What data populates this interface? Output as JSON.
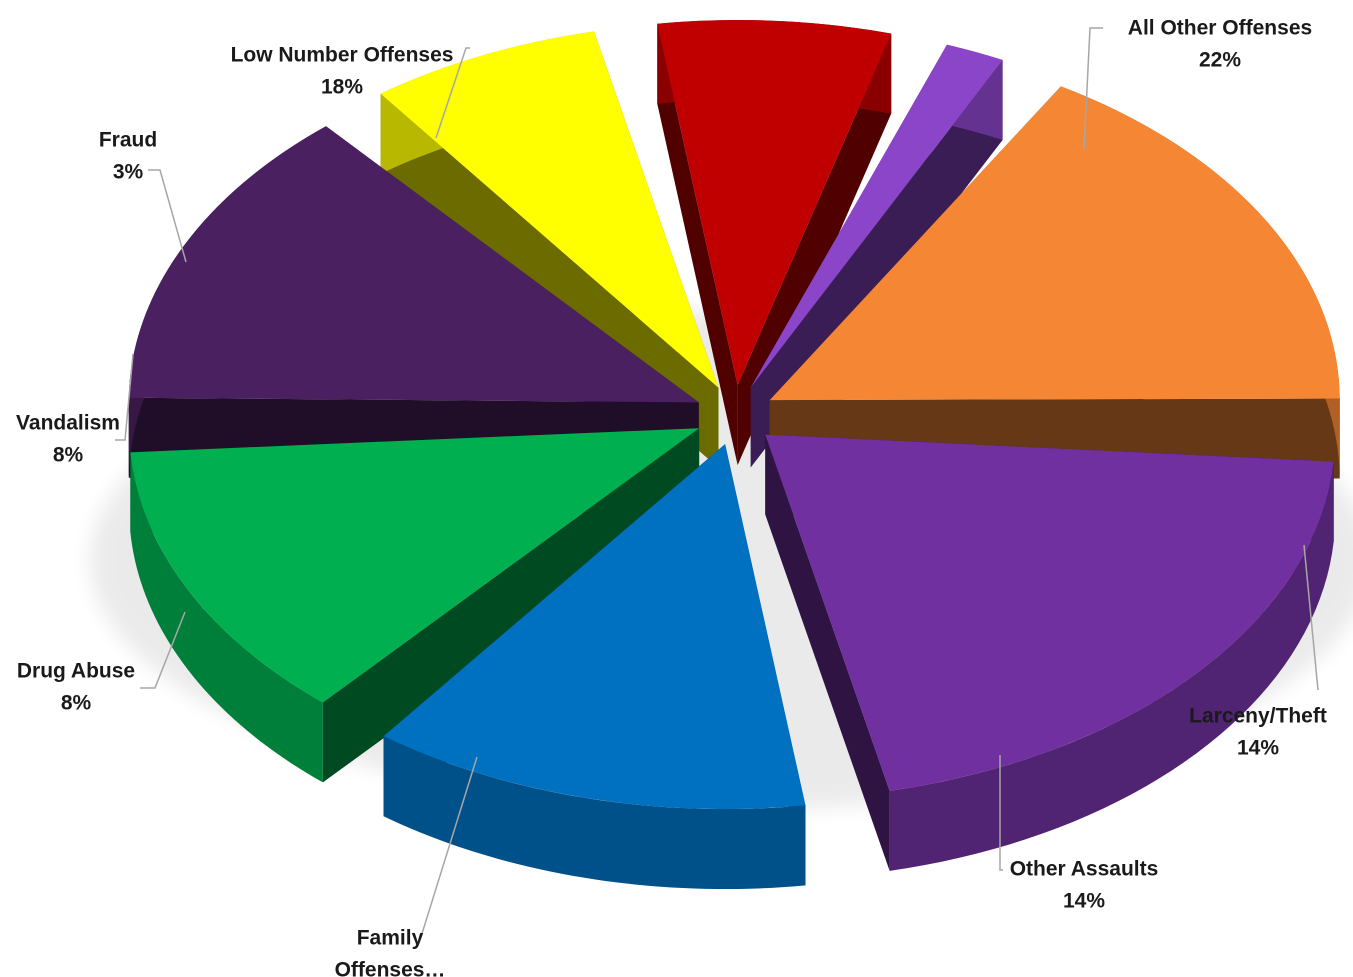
{
  "chart_data": {
    "type": "pie",
    "variant": "3d-exploded",
    "title": "",
    "legend": "none",
    "slices": [
      {
        "name": "All Other Offenses",
        "label_lines": [
          "All Other Offenses"
        ],
        "value": 22,
        "pct_label": "22%",
        "color": "#7030A0"
      },
      {
        "name": "Larceny/Theft",
        "label_lines": [
          "Larceny/Theft"
        ],
        "value": 14,
        "pct_label": "14%",
        "color": "#0070C0"
      },
      {
        "name": "Other Assaults",
        "label_lines": [
          "Other Assaults"
        ],
        "value": 14,
        "pct_label": "14%",
        "color": "#00B050"
      },
      {
        "name": "Family Offenses…",
        "label_lines": [
          "Family",
          "Offenses…"
        ],
        "value": 15,
        "pct_label": "",
        "color": "#4B2060"
      },
      {
        "name": "Drug Abuse",
        "label_lines": [
          "Drug Abuse"
        ],
        "value": 8,
        "pct_label": "8%",
        "color": "#FFFF00"
      },
      {
        "name": "Vandalism",
        "label_lines": [
          "Vandalism"
        ],
        "value": 8,
        "pct_label": "8%",
        "color": "#C00000"
      },
      {
        "name": "Fraud",
        "label_lines": [
          "Fraud"
        ],
        "value": 3,
        "pct_label": "3%",
        "color": "#8B45C8"
      },
      {
        "name": "Low Number Offenses",
        "label_lines": [
          "Low Number Offenses"
        ],
        "value": 18,
        "pct_label": "18%",
        "color": "#F58634"
      }
    ]
  }
}
